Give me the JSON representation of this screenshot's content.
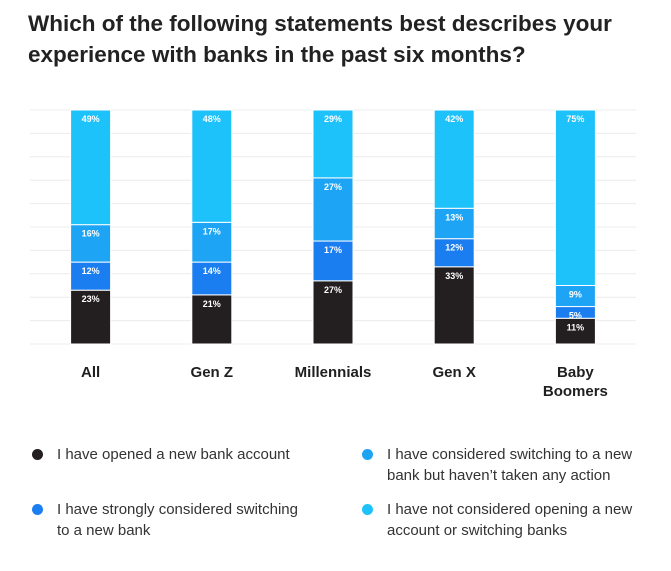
{
  "chart_data": {
    "type": "bar",
    "stacked": true,
    "title": "Which of the following statements best describes your experience with banks in the past six months?",
    "categories": [
      "All",
      "Gen Z",
      "Millennials",
      "Gen X",
      "Baby Boomers"
    ],
    "series": [
      {
        "name": "I have opened a new bank account",
        "color": "#231f20",
        "values": [
          23,
          21,
          27,
          33,
          11
        ]
      },
      {
        "name": "I have strongly considered switching to a new bank",
        "color": "#1a7ef0",
        "values": [
          12,
          14,
          17,
          12,
          5
        ]
      },
      {
        "name": "I have considered switching to a new bank but haven’t taken any action",
        "color": "#1ea4f5",
        "values": [
          16,
          17,
          27,
          13,
          9
        ]
      },
      {
        "name": "I have not considered opening a new account or switching banks",
        "color": "#1ec2fb",
        "values": [
          49,
          48,
          29,
          42,
          75
        ]
      }
    ],
    "value_suffix": "%",
    "ylim": [
      0,
      100
    ],
    "grid": true,
    "legend_position": "bottom"
  }
}
